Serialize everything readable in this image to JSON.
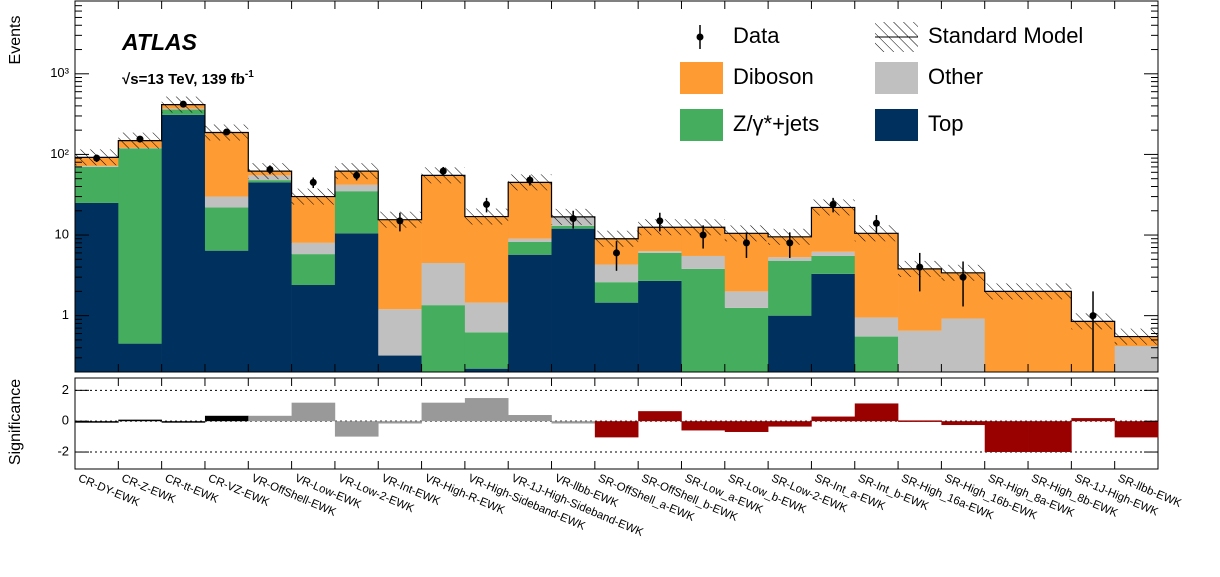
{
  "chart_data": [
    {
      "type": "stacked_bar",
      "log_y": true,
      "ylabel": "Events",
      "annotations": {
        "experiment": "ATLAS",
        "energy": "√s=13 TeV, 139 fb",
        "energy_sup": "-1"
      },
      "categories": [
        "CR-DY-EWK",
        "CR-Z-EWK",
        "CR-tt-EWK",
        "CR-VZ-EWK",
        "VR-OffShell-EWK",
        "VR-Low-EWK",
        "VR-Low-2-EWK",
        "VR-Int-EWK",
        "VR-High-R-EWK",
        "VR-High-Sideband-EWK",
        "VR-1J-High-Sideband-EWK",
        "VR-llbb-EWK",
        "SR-OffShell_a-EWK",
        "SR-OffShell_b-EWK",
        "SR-Low_a-EWK",
        "SR-Low_b-EWK",
        "SR-Low-2-EWK",
        "SR-Int_a-EWK",
        "SR-Int_b-EWK",
        "SR-High_16a-EWK",
        "SR-High_16b-EWK",
        "SR-High_8a-EWK",
        "SR-High_8b-EWK",
        "SR-1J-High-EWK",
        "SR-llbb-EWK"
      ],
      "series": [
        {
          "name": "Top",
          "color": "#00305e",
          "values": [
            25,
            0.45,
            310,
            6.4,
            45,
            2.4,
            10.5,
            0.32,
            0,
            0.22,
            5.7,
            12,
            1.45,
            2.7,
            0,
            0,
            1,
            3.3,
            0,
            0,
            0,
            0,
            0,
            0,
            0
          ]
        },
        {
          "name": "Z/γ*+jets",
          "color": "#45ad5e",
          "values": [
            45,
            118,
            50,
            15.6,
            3,
            3.4,
            24.5,
            0,
            1.35,
            0.4,
            2.5,
            1,
            1.15,
            3.3,
            3.8,
            1.25,
            3.8,
            2.2,
            0.55,
            0,
            0,
            0,
            0,
            0,
            0
          ]
        },
        {
          "name": "Other",
          "color": "#c0c0c0",
          "values": [
            2,
            2,
            10,
            8,
            7,
            2.2,
            7,
            0.88,
            3.15,
            0.83,
            0.8,
            3.5,
            1.7,
            0.3,
            1.7,
            0.75,
            0.5,
            0.7,
            0.4,
            0.65,
            0.92,
            0,
            0,
            0,
            0.42
          ]
        },
        {
          "name": "Diboson",
          "color": "#fe9b32",
          "values": [
            20,
            28,
            45,
            157,
            7,
            22,
            20,
            14.3,
            50.5,
            15.5,
            36,
            0.3,
            4.7,
            6.2,
            7,
            8.5,
            4.2,
            15.8,
            9.55,
            3.15,
            2.48,
            2,
            2,
            0.85,
            0.13
          ]
        }
      ],
      "total_name": "Standard Model",
      "data": {
        "name": "Data",
        "color": "#000000",
        "values": [
          90,
          155,
          420,
          190,
          65,
          45,
          55,
          15,
          62,
          24,
          48,
          16,
          6,
          15,
          10,
          8,
          8,
          24,
          14,
          4,
          3,
          null,
          null,
          1,
          null
        ],
        "errors": [
          9.5,
          12.4,
          20.5,
          13.8,
          8.1,
          6.7,
          7.4,
          3.9,
          7.9,
          4.9,
          6.9,
          4,
          2.4,
          3.9,
          3.2,
          2.8,
          2.8,
          4.9,
          3.7,
          2,
          1.7,
          null,
          null,
          1,
          null
        ]
      },
      "ylim": [
        0.2,
        8000
      ],
      "yticks": [
        1,
        10,
        {
          "value": 100,
          "label": "10²"
        },
        {
          "value": 1000,
          "label": "10³"
        }
      ]
    },
    {
      "type": "bar",
      "ylabel": "Significance",
      "values": [
        -0.05,
        0.1,
        -0.05,
        0.35,
        0.35,
        1.2,
        -1.0,
        -0.15,
        1.2,
        1.5,
        0.4,
        -0.15,
        -1.05,
        0.65,
        -0.6,
        -0.7,
        -0.35,
        0.3,
        1.15,
        0.05,
        -0.25,
        -2.0,
        -2.0,
        0.2,
        -1.05
      ],
      "colors": [
        "#000000",
        "#000000",
        "#000000",
        "#000000",
        "#999999",
        "#999999",
        "#999999",
        "#999999",
        "#999999",
        "#999999",
        "#999999",
        "#999999",
        "#990000",
        "#990000",
        "#990000",
        "#990000",
        "#990000",
        "#990000",
        "#990000",
        "#990000",
        "#990000",
        "#990000",
        "#990000",
        "#990000",
        "#990000"
      ],
      "ylim": [
        -3.1,
        2.8
      ],
      "yticks": [
        -2,
        0,
        2
      ],
      "hlines": [
        -2,
        0,
        2
      ]
    }
  ]
}
